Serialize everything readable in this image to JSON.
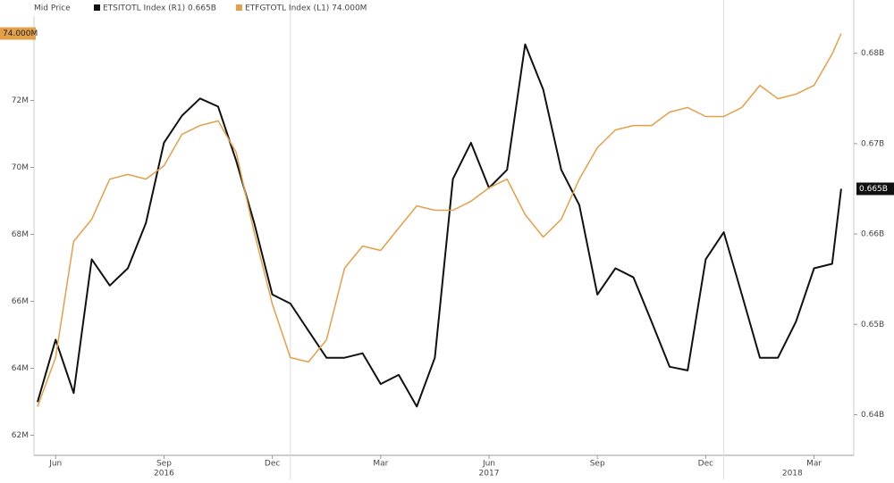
{
  "chart_data": {
    "type": "line",
    "legend_title": "Mid Price",
    "x": [
      5.0,
      5.5,
      6.0,
      6.5,
      7.0,
      7.5,
      8.0,
      8.5,
      9.0,
      9.5,
      10.0,
      10.5,
      11.0,
      11.5,
      12.0,
      12.5,
      13.0,
      13.5,
      14.0,
      14.5,
      15.0,
      15.5,
      16.0,
      16.5,
      17.0,
      17.5,
      18.0,
      18.5,
      19.0,
      19.5,
      20.0,
      20.5,
      21.0,
      21.5,
      22.0,
      22.5,
      23.0,
      23.5,
      24.0,
      24.5,
      25.0,
      25.5,
      26.0,
      26.5,
      27.0,
      27.25
    ],
    "xlim": [
      4.9,
      27.6
    ],
    "xticks": [
      {
        "value": 5.5,
        "label": "Jun"
      },
      {
        "value": 8.5,
        "label": "Sep"
      },
      {
        "value": 11.5,
        "label": "Dec"
      },
      {
        "value": 14.5,
        "label": "Mar"
      },
      {
        "value": 17.5,
        "label": "Jun"
      },
      {
        "value": 20.5,
        "label": "Sep"
      },
      {
        "value": 23.5,
        "label": "Dec"
      },
      {
        "value": 26.5,
        "label": "Mar"
      }
    ],
    "year_labels": [
      {
        "value": 8.5,
        "label": "2016"
      },
      {
        "value": 17.5,
        "label": "2017"
      },
      {
        "value": 25.9,
        "label": "2018"
      }
    ],
    "year_boundaries": [
      12,
      24
    ],
    "ylim": [
      61.4,
      75.0
    ],
    "yticks": [
      {
        "value": 62,
        "label": "62M"
      },
      {
        "value": 64,
        "label": "64M"
      },
      {
        "value": 66,
        "label": "66M"
      },
      {
        "value": 68,
        "label": "68M"
      },
      {
        "value": 70,
        "label": "70M"
      },
      {
        "value": 72,
        "label": "72M"
      }
    ],
    "y2lim": [
      0.6355,
      0.6859
    ],
    "y2ticks": [
      {
        "value": 0.64,
        "label": "0.64B"
      },
      {
        "value": 0.65,
        "label": "0.65B"
      },
      {
        "value": 0.66,
        "label": "0.66B"
      },
      {
        "value": 0.67,
        "label": "0.67B"
      },
      {
        "value": 0.68,
        "label": "0.68B"
      }
    ],
    "series": [
      {
        "name": "ETSITOTL Index (R1) 0.665B",
        "color": "#111111",
        "axis": "y2",
        "last_label": "0.665B",
        "values": [
          0.6414,
          0.6483,
          0.6424,
          0.6572,
          0.6543,
          0.6562,
          0.6612,
          0.6701,
          0.6731,
          0.675,
          0.6741,
          0.6681,
          0.6612,
          0.6533,
          0.6523,
          0.6493,
          0.6463,
          0.6463,
          0.6468,
          0.6434,
          0.6444,
          0.6409,
          0.6463,
          0.6661,
          0.6701,
          0.6651,
          0.6671,
          0.681,
          0.676,
          0.6671,
          0.6632,
          0.6533,
          0.6562,
          0.6552,
          0.6503,
          0.6453,
          0.6449,
          0.6572,
          0.6602,
          0.6533,
          0.6463,
          0.6463,
          0.6503,
          0.6562,
          0.6567,
          0.665
        ]
      },
      {
        "name": "ETFGTOTL Index (L1) 74.000M",
        "color": "#e3a04a",
        "axis": "y",
        "last_label": "74.000M",
        "values": [
          62.85,
          64.32,
          67.79,
          68.45,
          69.65,
          69.79,
          69.65,
          70.05,
          70.99,
          71.25,
          71.39,
          70.45,
          68.05,
          65.92,
          64.32,
          64.19,
          64.85,
          66.99,
          67.65,
          67.52,
          68.19,
          68.85,
          68.72,
          68.72,
          68.99,
          69.39,
          69.65,
          68.59,
          67.92,
          68.45,
          69.65,
          70.59,
          71.12,
          71.25,
          71.25,
          71.65,
          71.79,
          71.52,
          71.52,
          71.79,
          72.45,
          72.05,
          72.19,
          72.45,
          73.39,
          74.0
        ]
      }
    ]
  }
}
